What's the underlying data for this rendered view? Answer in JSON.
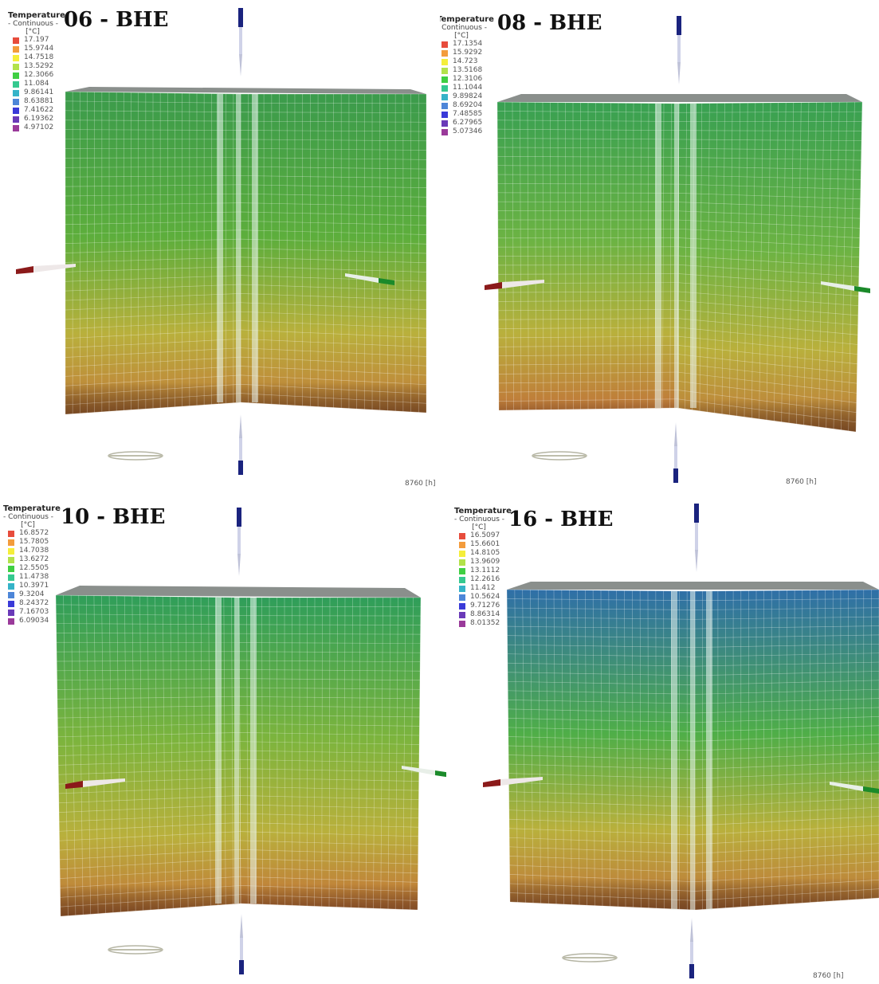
{
  "legend_common": {
    "title": "Temperature",
    "subtitle": "- Continuous -",
    "unit": "[°C]",
    "swatch_colors": [
      "#e74c3c",
      "#f39c3c",
      "#f5ee3a",
      "#b2e24a",
      "#3fcf42",
      "#35c98f",
      "#35b3c8",
      "#4d86d8",
      "#3a3ad8",
      "#6a3ab8",
      "#9a3a9a"
    ]
  },
  "panels": [
    {
      "title": "06 - BHE",
      "legend_values": [
        "17.197",
        "15.9744",
        "14.7518",
        "13.5292",
        "12.3066",
        "11.084",
        "9.86141",
        "8.63881",
        "7.41622",
        "6.19362",
        "4.97102"
      ],
      "time_label": "8760 [h]",
      "top_color": "#3b9b4c",
      "mid_color": "#5dae3c",
      "bottom_color": "#c27a3a"
    },
    {
      "title": "08 - BHE",
      "legend_values": [
        "17.1354",
        "15.9292",
        "14.723",
        "13.5168",
        "12.3106",
        "11.1044",
        "9.89824",
        "8.69204",
        "7.48585",
        "6.27965",
        "5.07346"
      ],
      "time_label": "8760 [h]",
      "top_color": "#38a052",
      "mid_color": "#6cb343",
      "bottom_color": "#c0773a"
    },
    {
      "title": "10 - BHE",
      "legend_values": [
        "16.8572",
        "15.7805",
        "14.7038",
        "13.6272",
        "12.5505",
        "11.4738",
        "10.3971",
        "9.3204",
        "8.24372",
        "7.16703",
        "6.09034"
      ],
      "time_label": "",
      "top_color": "#2f9e5a",
      "mid_color": "#7cb43d",
      "bottom_color": "#c37238"
    },
    {
      "title": "16 - BHE",
      "legend_values": [
        "16.5097",
        "15.6601",
        "14.8105",
        "13.9609",
        "13.1112",
        "12.2616",
        "11.412",
        "10.5624",
        "9.71276",
        "8.86314",
        "8.01352"
      ],
      "time_label": "8760 [h]",
      "top_color": "#2f6fa8",
      "mid_color": "#4fae48",
      "bottom_color": "#c0733a"
    }
  ]
}
